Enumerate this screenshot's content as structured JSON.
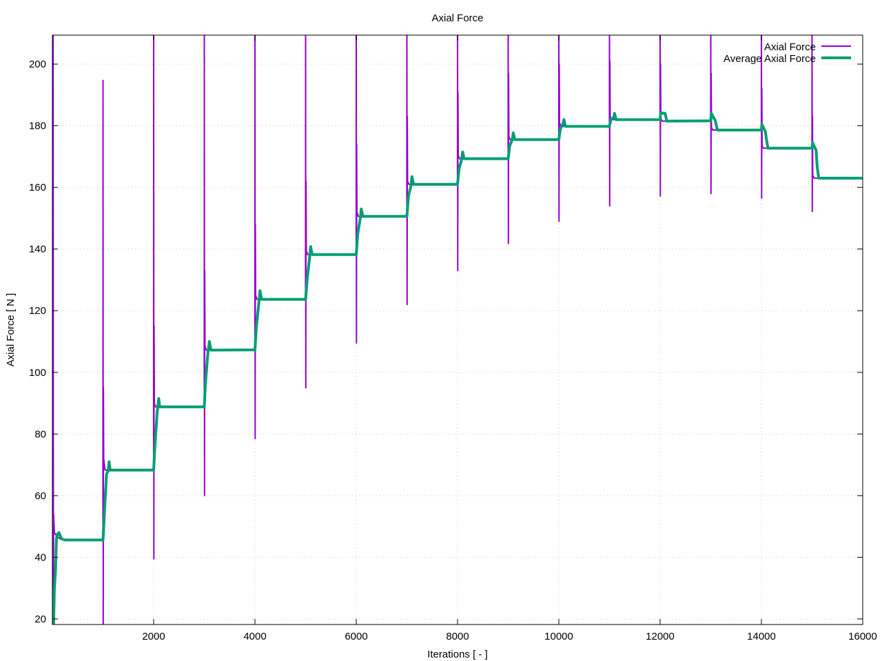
{
  "chart_data": {
    "type": "line",
    "title": "Axial Force",
    "xlabel": "Iterations [ - ]",
    "ylabel": "Axial Force [ N ]",
    "xlim": [
      0,
      16000
    ],
    "ylim": [
      18.2,
      209.4
    ],
    "xticks": [
      2000,
      4000,
      6000,
      8000,
      10000,
      12000,
      14000,
      16000
    ],
    "yticks": [
      20,
      40,
      60,
      80,
      100,
      120,
      140,
      160,
      180,
      200
    ],
    "grid": true,
    "legend_position": "top-right",
    "series": [
      {
        "name": "Axial Force",
        "color": "#9400d3",
        "points": [
          [
            0,
            18
          ],
          [
            5,
            215
          ],
          [
            10,
            18
          ],
          [
            15,
            215
          ],
          [
            20,
            30
          ],
          [
            25,
            54
          ],
          [
            40,
            48
          ],
          [
            80,
            47
          ],
          [
            150,
            46
          ],
          [
            250,
            45.6
          ],
          [
            999,
            45.6
          ],
          [
            1000,
            194.7
          ],
          [
            1004,
            10
          ],
          [
            1008,
            95
          ],
          [
            1014,
            72
          ],
          [
            1040,
            68.3
          ],
          [
            1999,
            68.3
          ],
          [
            2000,
            215
          ],
          [
            2004,
            39.5
          ],
          [
            2008,
            115
          ],
          [
            2014,
            90
          ],
          [
            2040,
            88.8
          ],
          [
            2999,
            88.8
          ],
          [
            3000,
            215
          ],
          [
            3004,
            60
          ],
          [
            3008,
            133
          ],
          [
            3014,
            108.5
          ],
          [
            3040,
            107.2
          ],
          [
            3999,
            107.3
          ],
          [
            4000,
            215
          ],
          [
            4004,
            78.5
          ],
          [
            4008,
            148
          ],
          [
            4014,
            125
          ],
          [
            4040,
            123.7
          ],
          [
            4999,
            123.7
          ],
          [
            5000,
            215
          ],
          [
            5004,
            95
          ],
          [
            5008,
            162
          ],
          [
            5014,
            139.5
          ],
          [
            5040,
            138.2
          ],
          [
            5999,
            138.2
          ],
          [
            6000,
            215
          ],
          [
            6004,
            109.5
          ],
          [
            6008,
            174
          ],
          [
            6014,
            152
          ],
          [
            6040,
            150.6
          ],
          [
            6999,
            150.6
          ],
          [
            7000,
            215
          ],
          [
            7004,
            122
          ],
          [
            7008,
            183
          ],
          [
            7014,
            162
          ],
          [
            7040,
            161
          ],
          [
            7999,
            161
          ],
          [
            8000,
            215
          ],
          [
            8004,
            133
          ],
          [
            8008,
            191
          ],
          [
            8014,
            170.5
          ],
          [
            8040,
            169.3
          ],
          [
            8999,
            169.3
          ],
          [
            9000,
            215
          ],
          [
            9004,
            141.8
          ],
          [
            9008,
            197
          ],
          [
            9014,
            176.5
          ],
          [
            9040,
            175.5
          ],
          [
            9999,
            175.5
          ],
          [
            10000,
            215
          ],
          [
            10004,
            149
          ],
          [
            10008,
            200
          ],
          [
            10014,
            181
          ],
          [
            10040,
            179.8
          ],
          [
            10999,
            179.8
          ],
          [
            11000,
            215
          ],
          [
            11004,
            154
          ],
          [
            11008,
            201
          ],
          [
            11014,
            183
          ],
          [
            11040,
            182
          ],
          [
            11999,
            182
          ],
          [
            12000,
            215
          ],
          [
            12004,
            157.2
          ],
          [
            12008,
            200
          ],
          [
            12014,
            182.5
          ],
          [
            12040,
            181.5
          ],
          [
            12999,
            181.6
          ],
          [
            13000,
            215
          ],
          [
            13004,
            158
          ],
          [
            13008,
            197
          ],
          [
            13014,
            179.5
          ],
          [
            13040,
            178.6
          ],
          [
            13999,
            178.6
          ],
          [
            14000,
            215
          ],
          [
            14004,
            156.5
          ],
          [
            14008,
            192
          ],
          [
            14014,
            173.5
          ],
          [
            14040,
            172.7
          ],
          [
            14999,
            172.7
          ],
          [
            15000,
            215
          ],
          [
            15004,
            152.2
          ],
          [
            15008,
            183
          ],
          [
            15014,
            164
          ],
          [
            15040,
            163
          ],
          [
            16000,
            163
          ]
        ]
      },
      {
        "name": "Average Axial Force",
        "color": "#009e73",
        "points": [
          [
            0,
            18.2
          ],
          [
            25,
            18.2
          ],
          [
            40,
            30
          ],
          [
            60,
            35
          ],
          [
            80,
            46
          ],
          [
            100,
            47.5
          ],
          [
            130,
            48
          ],
          [
            180,
            46
          ],
          [
            250,
            45.6
          ],
          [
            1000,
            45.6
          ],
          [
            1030,
            55
          ],
          [
            1070,
            67
          ],
          [
            1100,
            68
          ],
          [
            1120,
            71
          ],
          [
            1140,
            68.3
          ],
          [
            2000,
            68.3
          ],
          [
            2020,
            75
          ],
          [
            2070,
            87
          ],
          [
            2100,
            91.5
          ],
          [
            2120,
            88.8
          ],
          [
            3000,
            88.8
          ],
          [
            3020,
            96
          ],
          [
            3070,
            106
          ],
          [
            3100,
            110
          ],
          [
            3130,
            107.2
          ],
          [
            4000,
            107.3
          ],
          [
            4030,
            115
          ],
          [
            4080,
            123
          ],
          [
            4100,
            126.5
          ],
          [
            4130,
            123.7
          ],
          [
            5000,
            123.7
          ],
          [
            5030,
            130
          ],
          [
            5080,
            137.5
          ],
          [
            5100,
            140.8
          ],
          [
            5130,
            138.2
          ],
          [
            6000,
            138.2
          ],
          [
            6030,
            145
          ],
          [
            6080,
            150
          ],
          [
            6100,
            153
          ],
          [
            6130,
            150.6
          ],
          [
            7000,
            150.6
          ],
          [
            7030,
            157
          ],
          [
            7080,
            160.5
          ],
          [
            7100,
            163.5
          ],
          [
            7130,
            161
          ],
          [
            8000,
            161
          ],
          [
            8030,
            166
          ],
          [
            8080,
            169
          ],
          [
            8100,
            171.5
          ],
          [
            8130,
            169.3
          ],
          [
            9000,
            169.3
          ],
          [
            9030,
            173.5
          ],
          [
            9080,
            175.5
          ],
          [
            9100,
            177.7
          ],
          [
            9130,
            175.5
          ],
          [
            10000,
            175.5
          ],
          [
            10030,
            179
          ],
          [
            10080,
            180.5
          ],
          [
            10100,
            182
          ],
          [
            10130,
            179.8
          ],
          [
            11000,
            179.8
          ],
          [
            11030,
            182.2
          ],
          [
            11080,
            182.5
          ],
          [
            11100,
            184
          ],
          [
            11130,
            182
          ],
          [
            12000,
            182
          ],
          [
            12010,
            184.2
          ],
          [
            12100,
            184
          ],
          [
            12130,
            181.5
          ],
          [
            13000,
            181.6
          ],
          [
            13010,
            184
          ],
          [
            13080,
            182
          ],
          [
            13100,
            181
          ],
          [
            13130,
            178.6
          ],
          [
            14000,
            178.6
          ],
          [
            14010,
            180.5
          ],
          [
            14080,
            178
          ],
          [
            14100,
            175.5
          ],
          [
            14130,
            172.7
          ],
          [
            15000,
            172.7
          ],
          [
            15010,
            174.5
          ],
          [
            15080,
            172
          ],
          [
            15100,
            167
          ],
          [
            15130,
            163
          ],
          [
            16000,
            163
          ]
        ]
      }
    ]
  }
}
